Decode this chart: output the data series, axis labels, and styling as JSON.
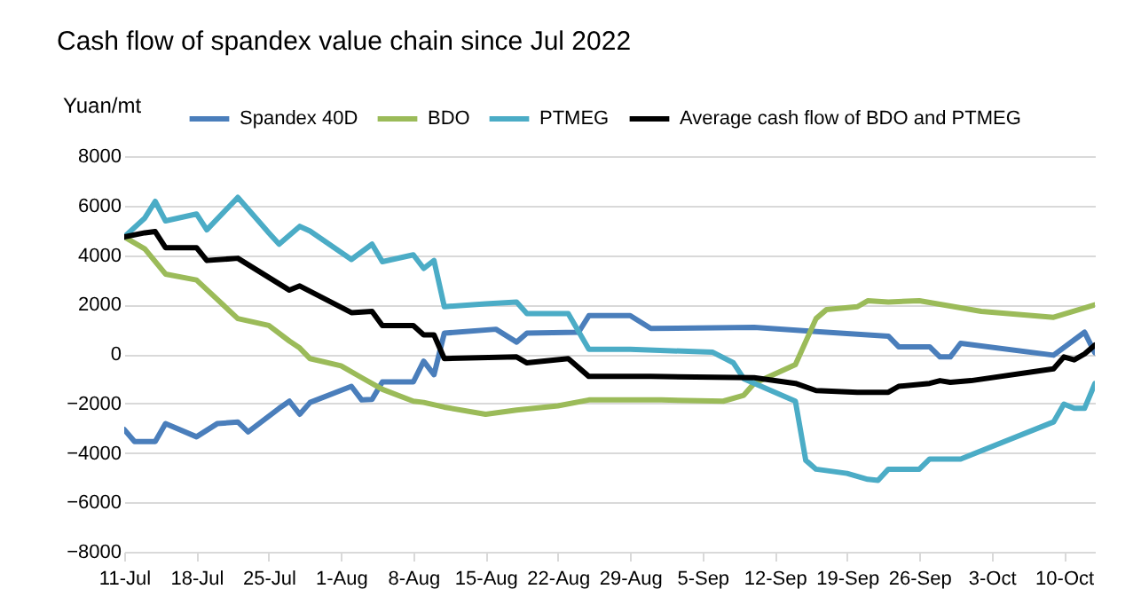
{
  "chart_data": {
    "type": "line",
    "title": "Cash flow of spandex value chain since Jul 2022",
    "ylabel": "Yuan/mt",
    "xlim": [
      "2022-07-11",
      "2022-10-13"
    ],
    "xticks": [
      {
        "value": "2022-07-11",
        "label": "11-Jul"
      },
      {
        "value": "2022-07-18",
        "label": "18-Jul"
      },
      {
        "value": "2022-07-25",
        "label": "25-Jul"
      },
      {
        "value": "2022-08-01",
        "label": "1-Aug"
      },
      {
        "value": "2022-08-08",
        "label": "8-Aug"
      },
      {
        "value": "2022-08-15",
        "label": "15-Aug"
      },
      {
        "value": "2022-08-22",
        "label": "22-Aug"
      },
      {
        "value": "2022-08-29",
        "label": "29-Aug"
      },
      {
        "value": "2022-09-05",
        "label": "5-Sep"
      },
      {
        "value": "2022-09-12",
        "label": "12-Sep"
      },
      {
        "value": "2022-09-19",
        "label": "19-Sep"
      },
      {
        "value": "2022-09-26",
        "label": "26-Sep"
      },
      {
        "value": "2022-10-03",
        "label": "3-Oct"
      },
      {
        "value": "2022-10-10",
        "label": "10-Oct"
      }
    ],
    "ylim": [
      -8000,
      8000
    ],
    "yticks": [
      -8000,
      -6000,
      -4000,
      -2000,
      0,
      2000,
      4000,
      6000,
      8000
    ],
    "grid": "y",
    "legend": "top",
    "series": [
      {
        "name": "Spandex 40D",
        "color": "#4a7ebb",
        "x": [
          "2022-07-11",
          "2022-07-12",
          "2022-07-14",
          "2022-07-15",
          "2022-07-18",
          "2022-07-20",
          "2022-07-22",
          "2022-07-23",
          "2022-07-26",
          "2022-07-27",
          "2022-07-28",
          "2022-07-29",
          "2022-08-02",
          "2022-08-03",
          "2022-08-04",
          "2022-08-05",
          "2022-08-08",
          "2022-08-09",
          "2022-08-10",
          "2022-08-11",
          "2022-08-16",
          "2022-08-18",
          "2022-08-19",
          "2022-08-24",
          "2022-08-25",
          "2022-08-29",
          "2022-08-31",
          "2022-09-10",
          "2022-09-16",
          "2022-09-23",
          "2022-09-24",
          "2022-09-27",
          "2022-09-28",
          "2022-09-29",
          "2022-09-30",
          "2022-10-09",
          "2022-10-12",
          "2022-10-13"
        ],
        "values": [
          -3060,
          -3540,
          -3540,
          -2820,
          -3350,
          -2820,
          -2750,
          -3150,
          -2200,
          -1910,
          -2440,
          -1960,
          -1310,
          -1860,
          -1840,
          -1130,
          -1130,
          -290,
          -840,
          840,
          1000,
          480,
          840,
          880,
          1550,
          1550,
          1030,
          1080,
          910,
          720,
          290,
          290,
          -120,
          -120,
          430,
          -50,
          880,
          50
        ]
      },
      {
        "name": "BDO",
        "color": "#9bbb59",
        "x": [
          "2022-07-11",
          "2022-07-13",
          "2022-07-15",
          "2022-07-18",
          "2022-07-22",
          "2022-07-25",
          "2022-07-27",
          "2022-07-28",
          "2022-07-29",
          "2022-08-01",
          "2022-08-03",
          "2022-08-05",
          "2022-08-08",
          "2022-08-09",
          "2022-08-11",
          "2022-08-15",
          "2022-08-18",
          "2022-08-22",
          "2022-08-25",
          "2022-09-01",
          "2022-09-07",
          "2022-09-09",
          "2022-09-10",
          "2022-09-14",
          "2022-09-16",
          "2022-09-17",
          "2022-09-20",
          "2022-09-21",
          "2022-09-23",
          "2022-09-26",
          "2022-10-02",
          "2022-10-09",
          "2022-10-13"
        ],
        "values": [
          4730,
          4250,
          3230,
          2990,
          1430,
          1150,
          520,
          240,
          -190,
          -480,
          -960,
          -1430,
          -1910,
          -1960,
          -2150,
          -2440,
          -2270,
          -2100,
          -1860,
          -1860,
          -1910,
          -1670,
          -1190,
          -430,
          1430,
          1790,
          1910,
          2150,
          2100,
          2150,
          1720,
          1480,
          1990
        ]
      },
      {
        "name": "PTMEG",
        "color": "#4bacc6",
        "x": [
          "2022-07-11",
          "2022-07-13",
          "2022-07-14",
          "2022-07-15",
          "2022-07-18",
          "2022-07-19",
          "2022-07-22",
          "2022-07-25",
          "2022-07-26",
          "2022-07-28",
          "2022-07-29",
          "2022-08-02",
          "2022-08-04",
          "2022-08-05",
          "2022-08-08",
          "2022-08-09",
          "2022-08-10",
          "2022-08-11",
          "2022-08-15",
          "2022-08-18",
          "2022-08-19",
          "2022-08-23",
          "2022-08-25",
          "2022-08-29",
          "2022-09-06",
          "2022-09-08",
          "2022-09-09",
          "2022-09-14",
          "2022-09-15",
          "2022-09-16",
          "2022-09-19",
          "2022-09-21",
          "2022-09-22",
          "2022-09-23",
          "2022-09-26",
          "2022-09-27",
          "2022-09-30",
          "2022-10-09",
          "2022-10-10",
          "2022-10-11",
          "2022-10-12",
          "2022-10-13"
        ],
        "values": [
          4730,
          5500,
          6170,
          5380,
          5660,
          5020,
          6330,
          4900,
          4440,
          5160,
          4970,
          3820,
          4440,
          3730,
          4010,
          3460,
          3780,
          1910,
          2030,
          2100,
          1630,
          1630,
          190,
          190,
          70,
          -360,
          -1000,
          -1910,
          -4300,
          -4660,
          -4830,
          -5070,
          -5110,
          -4660,
          -4660,
          -4250,
          -4250,
          -2750,
          -2030,
          -2200,
          -2200,
          -1200
        ]
      },
      {
        "name": "Average cash flow of BDO and PTMEG",
        "color": "#000000",
        "x": [
          "2022-07-11",
          "2022-07-13",
          "2022-07-14",
          "2022-07-15",
          "2022-07-18",
          "2022-07-19",
          "2022-07-22",
          "2022-07-27",
          "2022-07-28",
          "2022-08-02",
          "2022-08-04",
          "2022-08-05",
          "2022-08-08",
          "2022-08-09",
          "2022-08-10",
          "2022-08-11",
          "2022-08-18",
          "2022-08-19",
          "2022-08-23",
          "2022-08-25",
          "2022-08-31",
          "2022-09-10",
          "2022-09-14",
          "2022-09-16",
          "2022-09-20",
          "2022-09-23",
          "2022-09-24",
          "2022-09-27",
          "2022-09-28",
          "2022-09-29",
          "2022-10-01",
          "2022-10-09",
          "2022-10-10",
          "2022-10-11",
          "2022-10-12",
          "2022-10-13"
        ],
        "values": [
          4730,
          4900,
          4950,
          4300,
          4300,
          3780,
          3870,
          2580,
          2750,
          1670,
          1720,
          1150,
          1150,
          770,
          770,
          -190,
          -120,
          -360,
          -190,
          -910,
          -910,
          -960,
          -1190,
          -1480,
          -1550,
          -1550,
          -1310,
          -1190,
          -1080,
          -1150,
          -1080,
          -600,
          -120,
          -240,
          0,
          360
        ]
      }
    ]
  }
}
